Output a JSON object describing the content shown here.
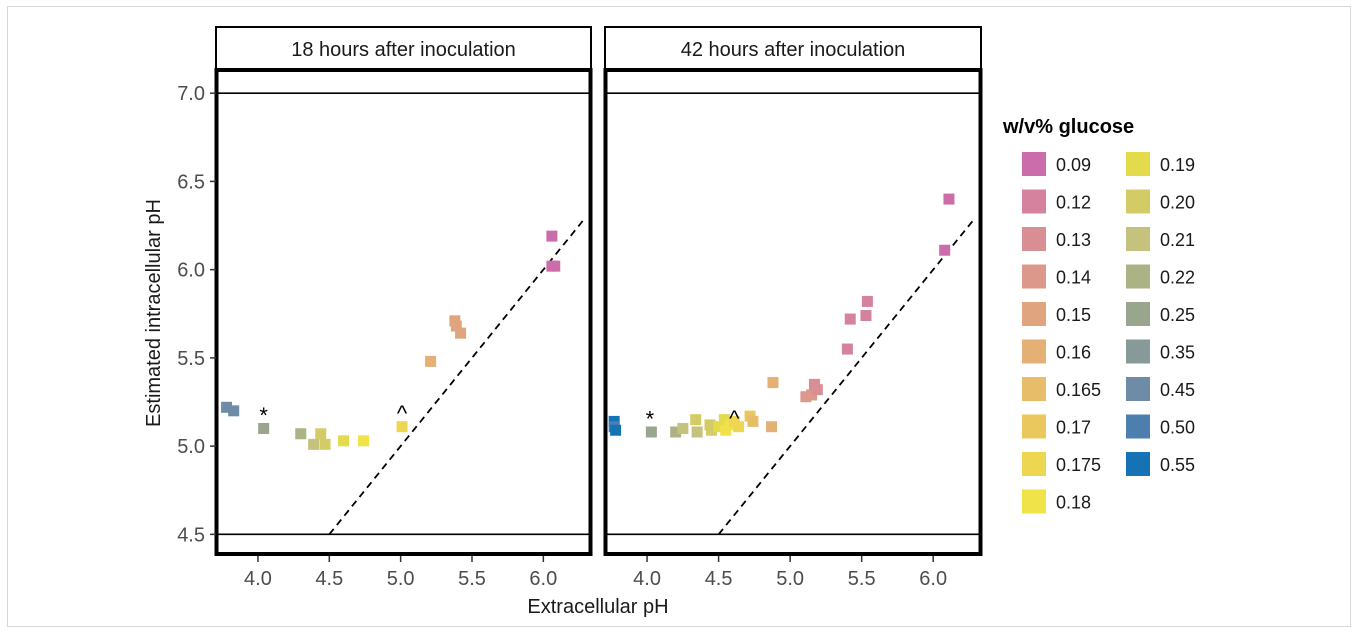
{
  "chart_data": {
    "type": "scatter",
    "xlabel": "Extracellular pH",
    "ylabel": "Estimated intracellular pH",
    "xlim": [
      3.72,
      6.32
    ],
    "ylim": [
      4.4,
      7.12
    ],
    "x_ticks": [
      "4.0",
      "4.5",
      "5.0",
      "5.5",
      "6.0"
    ],
    "y_ticks": [
      "4.5",
      "5.0",
      "5.5",
      "6.0",
      "6.5",
      "7.0"
    ],
    "grid": false,
    "legend_position": "right",
    "legend": {
      "title": "w/v% glucose",
      "entries": [
        {
          "label": "0.09",
          "color": "#CC6DAB"
        },
        {
          "label": "0.12",
          "color": "#D4829D"
        },
        {
          "label": "0.13",
          "color": "#D98D95"
        },
        {
          "label": "0.14",
          "color": "#DC988B"
        },
        {
          "label": "0.15",
          "color": "#E0A57F"
        },
        {
          "label": "0.16",
          "color": "#E4B076"
        },
        {
          "label": "0.165",
          "color": "#E8BD6A"
        },
        {
          "label": "0.17",
          "color": "#EBC85E"
        },
        {
          "label": "0.175",
          "color": "#EED653"
        },
        {
          "label": "0.18",
          "color": "#F0E349"
        },
        {
          "label": "0.19",
          "color": "#E3DA4C"
        },
        {
          "label": "0.20",
          "color": "#D3CC66"
        },
        {
          "label": "0.21",
          "color": "#C4C27D"
        },
        {
          "label": "0.22",
          "color": "#ABB284"
        },
        {
          "label": "0.25",
          "color": "#9AA58E"
        },
        {
          "label": "0.35",
          "color": "#879A99"
        },
        {
          "label": "0.45",
          "color": "#6E8CA6"
        },
        {
          "label": "0.50",
          "color": "#4C7EAE"
        },
        {
          "label": "0.55",
          "color": "#1472B5"
        }
      ]
    },
    "reference_lines": {
      "horizontal": [
        4.5,
        7.0
      ],
      "diagonal": {
        "from": [
          4.5,
          4.5
        ],
        "to": [
          6.28,
          6.28
        ],
        "style": "dashed"
      }
    },
    "panels": [
      {
        "title": "18 hours after inoculation",
        "points": [
          {
            "x": 3.78,
            "y": 5.22,
            "g": "0.45"
          },
          {
            "x": 3.83,
            "y": 5.2,
            "g": "0.45"
          },
          {
            "x": 4.04,
            "y": 5.1,
            "g": "0.25"
          },
          {
            "x": 4.3,
            "y": 5.07,
            "g": "0.22"
          },
          {
            "x": 4.39,
            "y": 5.01,
            "g": "0.21"
          },
          {
            "x": 4.44,
            "y": 5.07,
            "g": "0.20"
          },
          {
            "x": 4.47,
            "y": 5.01,
            "g": "0.20"
          },
          {
            "x": 4.6,
            "y": 5.03,
            "g": "0.19"
          },
          {
            "x": 4.74,
            "y": 5.03,
            "g": "0.18"
          },
          {
            "x": 5.01,
            "y": 5.11,
            "g": "0.175"
          },
          {
            "x": 5.21,
            "y": 5.48,
            "g": "0.16"
          },
          {
            "x": 5.38,
            "y": 5.71,
            "g": "0.15"
          },
          {
            "x": 5.39,
            "y": 5.68,
            "g": "0.15"
          },
          {
            "x": 5.42,
            "y": 5.64,
            "g": "0.15"
          },
          {
            "x": 6.06,
            "y": 6.19,
            "g": "0.09"
          },
          {
            "x": 6.06,
            "y": 6.02,
            "g": "0.09"
          },
          {
            "x": 6.08,
            "y": 6.02,
            "g": "0.09"
          }
        ],
        "annotations": [
          {
            "text": "*",
            "x": 4.04,
            "y": 5.2
          },
          {
            "text": "^",
            "x": 5.01,
            "y": 5.2
          }
        ]
      },
      {
        "title": "42 hours after inoculation",
        "points": [
          {
            "x": 3.77,
            "y": 5.14,
            "g": "0.55"
          },
          {
            "x": 3.77,
            "y": 5.11,
            "g": "0.50"
          },
          {
            "x": 3.78,
            "y": 5.09,
            "g": "0.55"
          },
          {
            "x": 4.03,
            "y": 5.08,
            "g": "0.25"
          },
          {
            "x": 4.2,
            "y": 5.08,
            "g": "0.22"
          },
          {
            "x": 4.25,
            "y": 5.1,
            "g": "0.21"
          },
          {
            "x": 4.34,
            "y": 5.15,
            "g": "0.20"
          },
          {
            "x": 4.35,
            "y": 5.08,
            "g": "0.21"
          },
          {
            "x": 4.44,
            "y": 5.12,
            "g": "0.20"
          },
          {
            "x": 4.45,
            "y": 5.09,
            "g": "0.20"
          },
          {
            "x": 4.5,
            "y": 5.11,
            "g": "0.19"
          },
          {
            "x": 4.54,
            "y": 5.15,
            "g": "0.19"
          },
          {
            "x": 4.55,
            "y": 5.09,
            "g": "0.18"
          },
          {
            "x": 4.58,
            "y": 5.12,
            "g": "0.18"
          },
          {
            "x": 4.61,
            "y": 5.14,
            "g": "0.175"
          },
          {
            "x": 4.64,
            "y": 5.11,
            "g": "0.175"
          },
          {
            "x": 4.72,
            "y": 5.17,
            "g": "0.17"
          },
          {
            "x": 4.74,
            "y": 5.14,
            "g": "0.165"
          },
          {
            "x": 4.87,
            "y": 5.11,
            "g": "0.16"
          },
          {
            "x": 4.88,
            "y": 5.36,
            "g": "0.16"
          },
          {
            "x": 5.11,
            "y": 5.28,
            "g": "0.14"
          },
          {
            "x": 5.15,
            "y": 5.29,
            "g": "0.14"
          },
          {
            "x": 5.17,
            "y": 5.35,
            "g": "0.13"
          },
          {
            "x": 5.19,
            "y": 5.32,
            "g": "0.13"
          },
          {
            "x": 5.4,
            "y": 5.55,
            "g": "0.12"
          },
          {
            "x": 5.42,
            "y": 5.72,
            "g": "0.12"
          },
          {
            "x": 5.53,
            "y": 5.74,
            "g": "0.12"
          },
          {
            "x": 5.54,
            "y": 5.82,
            "g": "0.12"
          },
          {
            "x": 6.08,
            "y": 6.11,
            "g": "0.09"
          },
          {
            "x": 6.11,
            "y": 6.4,
            "g": "0.09"
          }
        ],
        "annotations": [
          {
            "text": "*",
            "x": 4.02,
            "y": 5.18
          },
          {
            "text": "^",
            "x": 4.61,
            "y": 5.17
          }
        ]
      }
    ]
  }
}
